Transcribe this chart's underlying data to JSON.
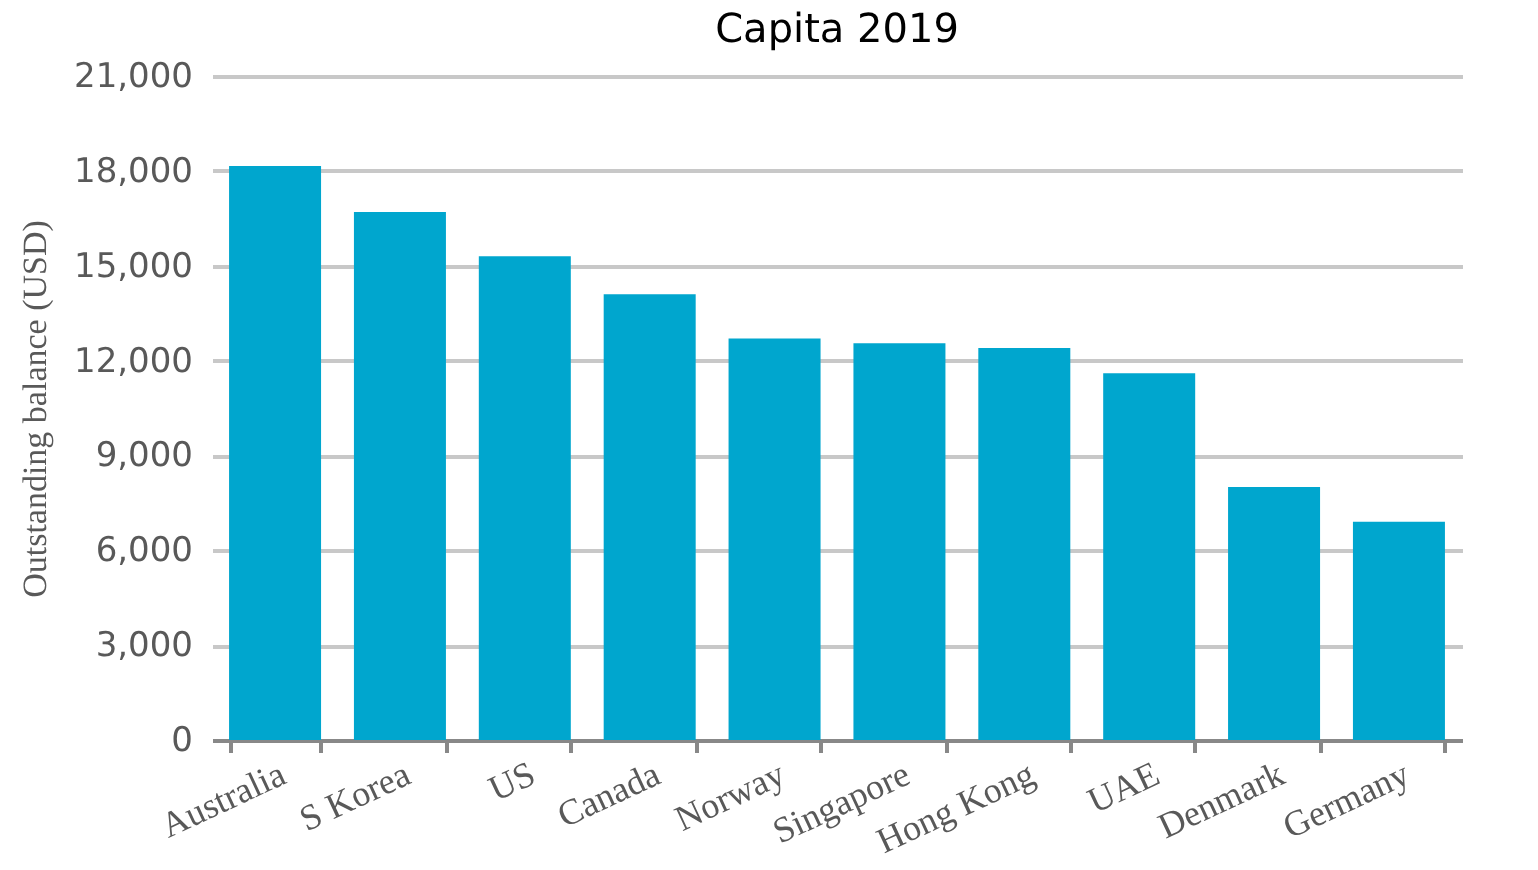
{
  "chart_data": {
    "type": "bar",
    "title": "Capita 2019",
    "ylabel": "Outstanding balance (USD)",
    "categories": [
      "Australia",
      "S Korea",
      "US",
      "Canada",
      "Norway",
      "Singapore",
      "Hong Kong",
      "UAE",
      "Denmark",
      "Germany"
    ],
    "values": [
      18150,
      16700,
      15300,
      14100,
      12700,
      12550,
      12400,
      11600,
      8000,
      6900
    ],
    "color": "#00a6ce",
    "ylim": [
      0,
      21000
    ],
    "yticks": [
      0,
      {
        "value": 3000,
        "label": "3,000"
      },
      {
        "value": 6000,
        "label": "6,000"
      },
      {
        "value": 9000,
        "label": "9,000"
      },
      {
        "value": 12000,
        "label": "12,000"
      },
      {
        "value": 15000,
        "label": "15,000"
      },
      {
        "value": 18000,
        "label": "18,000"
      },
      {
        "value": 21000,
        "label": "21,000"
      }
    ],
    "grid": "y"
  }
}
